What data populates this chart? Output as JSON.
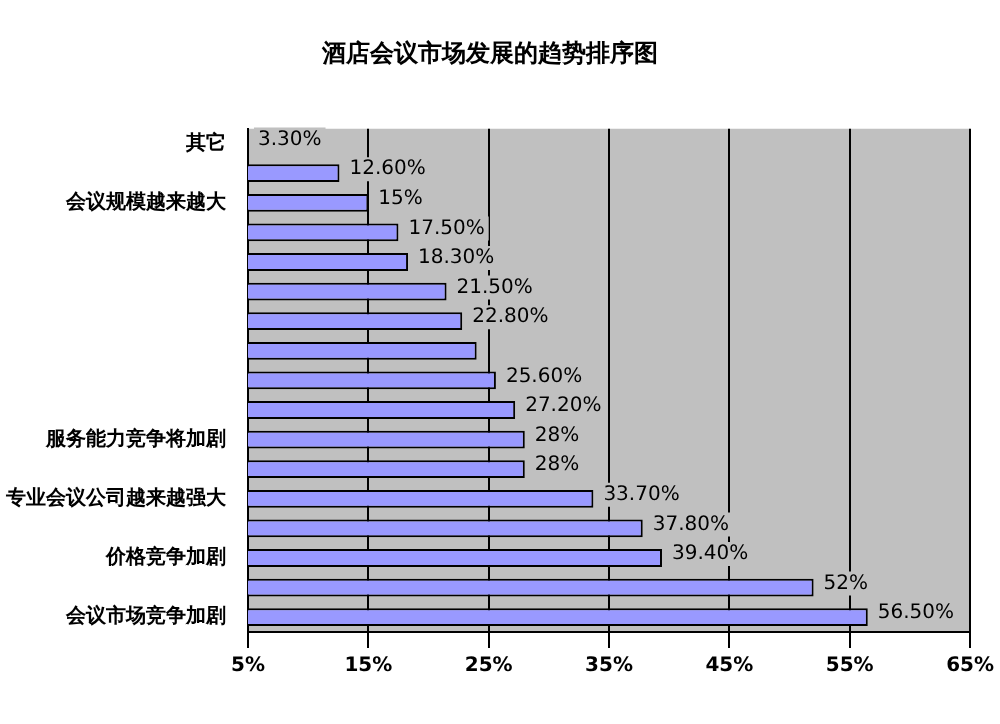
{
  "chart_data": {
    "type": "bar",
    "orientation": "horizontal",
    "title": "酒店会议市场发展的趋势排序图",
    "categories": [
      "其它",
      null,
      "会议规模越来越大",
      null,
      null,
      null,
      null,
      null,
      null,
      null,
      "服务能力竞争将加剧",
      null,
      "专业会议公司越来越强大",
      null,
      "价格竞争加剧",
      null,
      "会议市场竞争加剧"
    ],
    "values": [
      null,
      12.6,
      15,
      17.5,
      18.3,
      21.5,
      22.8,
      24,
      25.6,
      27.2,
      28,
      28,
      33.7,
      37.8,
      39.4,
      52,
      56.5
    ],
    "value_labels": [
      "3.30%",
      "12.60%",
      "15%",
      "17.50%",
      "18.30%",
      "21.50%",
      "22.80%",
      null,
      "25.60%",
      "27.20%",
      "28%",
      "28%",
      "33.70%",
      "37.80%",
      "39.40%",
      "52%",
      "56.50%"
    ],
    "color": "#9999ff",
    "xlim": [
      5,
      65
    ],
    "xticks": [
      {
        "value": 5,
        "label": "5%"
      },
      {
        "value": 15,
        "label": "15%"
      },
      {
        "value": 25,
        "label": "25%"
      },
      {
        "value": 35,
        "label": "35%"
      },
      {
        "value": 45,
        "label": "45%"
      },
      {
        "value": 55,
        "label": "55%"
      },
      {
        "value": 65,
        "label": "65%"
      }
    ],
    "grid": "x",
    "legend": false
  }
}
